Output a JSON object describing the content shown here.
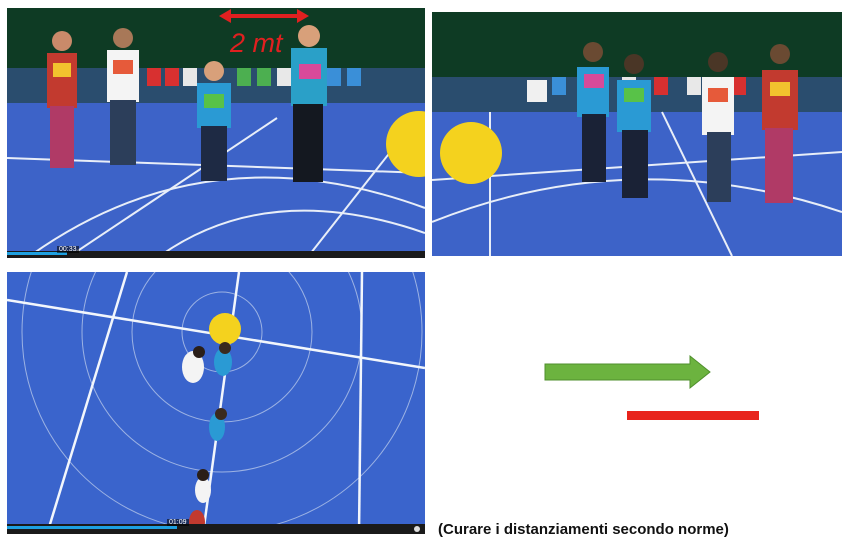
{
  "panels": {
    "top_left": {
      "distance_label": "2 mt",
      "timestamp": "00:33"
    },
    "top_right": {},
    "bottom_left": {
      "timestamp": "01:09"
    }
  },
  "caption": "(Curare i distanziamenti secondo norme)",
  "colors": {
    "court_blue": "#3d63c8",
    "ball_yellow": "#f4d21e",
    "arrow_green": "#6cb33f",
    "bar_red": "#e8241c",
    "label_red": "#e02020"
  },
  "icons": [
    "green-arrow-icon",
    "red-distance-bar-icon",
    "red-double-arrow-icon"
  ]
}
